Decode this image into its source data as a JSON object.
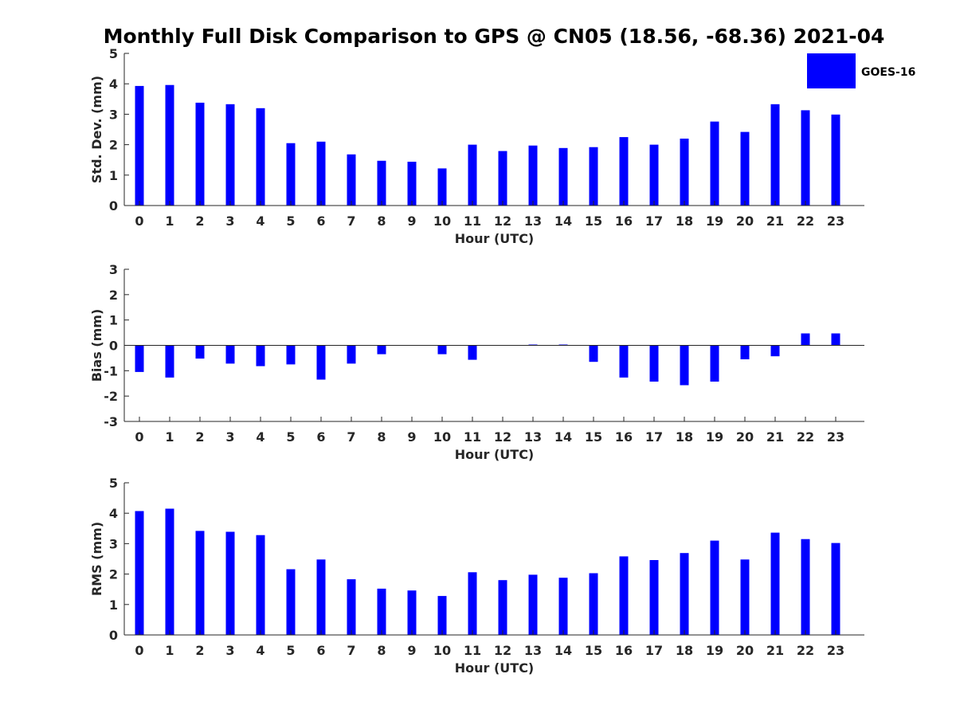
{
  "chart_data": {
    "type": "bar",
    "title": "Monthly Full Disk Comparison to GPS @ CN05 (18.56, -68.36) 2021-04",
    "legend": {
      "label": "GOES-16",
      "color": "#0000ff",
      "position": "top-right"
    },
    "categories": [
      "0",
      "1",
      "2",
      "3",
      "4",
      "5",
      "6",
      "7",
      "8",
      "9",
      "10",
      "11",
      "12",
      "13",
      "14",
      "15",
      "16",
      "17",
      "18",
      "19",
      "20",
      "21",
      "22",
      "23"
    ],
    "panels": [
      {
        "name": "std-dev",
        "xlabel": "Hour (UTC)",
        "ylabel": "Std. Dev. (mm)",
        "ylim": [
          0,
          5
        ],
        "yticks": [
          "0",
          "1",
          "2",
          "3",
          "4",
          "5"
        ],
        "series": [
          {
            "name": "GOES-16",
            "values": [
              3.93,
              3.96,
              3.38,
              3.33,
              3.2,
              2.05,
              2.1,
              1.68,
              1.47,
              1.44,
              1.22,
              2.0,
              1.79,
              1.97,
              1.89,
              1.92,
              2.25,
              2.0,
              2.2,
              2.76,
              2.42,
              3.33,
              3.13,
              2.99
            ]
          }
        ]
      },
      {
        "name": "bias",
        "xlabel": "Hour (UTC)",
        "ylabel": "Bias (mm)",
        "ylim": [
          -3,
          3
        ],
        "yticks": [
          "-3",
          "-2",
          "-1",
          "0",
          "1",
          "2",
          "3"
        ],
        "series": [
          {
            "name": "GOES-16",
            "values": [
              -1.05,
              -1.27,
              -0.52,
              -0.72,
              -0.82,
              -0.75,
              -1.35,
              -0.72,
              -0.35,
              0.0,
              -0.35,
              -0.57,
              0.0,
              0.03,
              0.03,
              -0.65,
              -1.27,
              -1.43,
              -1.57,
              -1.43,
              -0.55,
              -0.43,
              0.47,
              0.47
            ]
          }
        ]
      },
      {
        "name": "rms",
        "xlabel": "Hour (UTC)",
        "ylabel": "RMS (mm)",
        "ylim": [
          0,
          5
        ],
        "yticks": [
          "0",
          "1",
          "2",
          "3",
          "4",
          "5"
        ],
        "series": [
          {
            "name": "GOES-16",
            "values": [
              4.07,
              4.15,
              3.42,
              3.39,
              3.28,
              2.16,
              2.48,
              1.83,
              1.52,
              1.46,
              1.28,
              2.06,
              1.8,
              1.98,
              1.88,
              2.03,
              2.58,
              2.46,
              2.69,
              3.1,
              2.48,
              3.36,
              3.15,
              3.02
            ]
          }
        ]
      }
    ]
  }
}
